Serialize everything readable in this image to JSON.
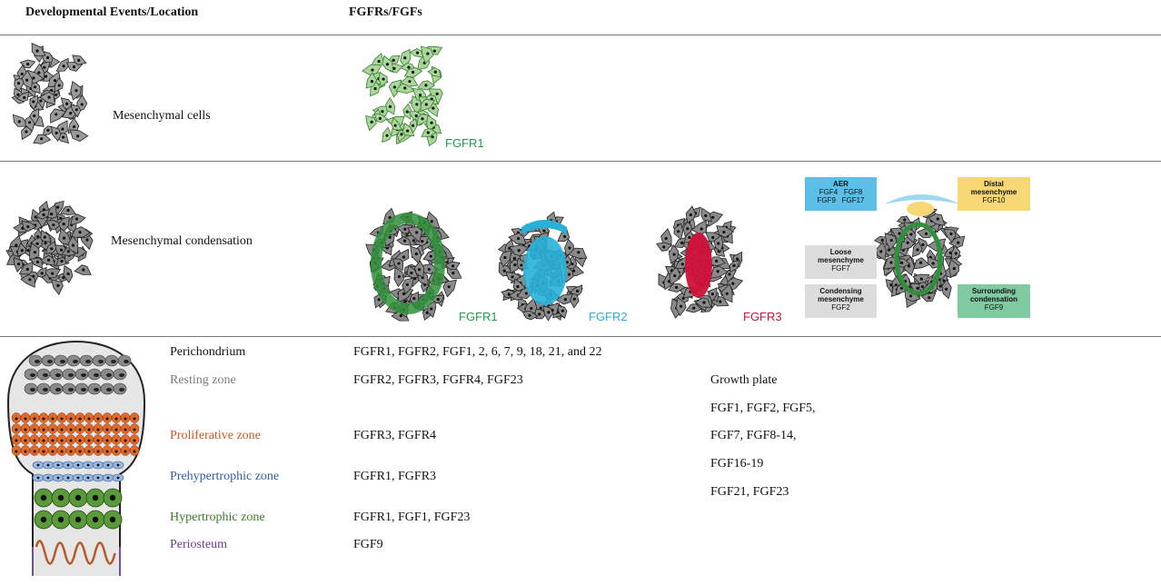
{
  "headers": {
    "events": "Developmental Events/Location",
    "fgfrs": "FGFRs/FGFs"
  },
  "row1": {
    "label": "Mesenchymal cells",
    "receptor": "FGFR1"
  },
  "row2": {
    "label": "Mesenchymal condensation",
    "receptors": [
      "FGFR1",
      "FGFR2",
      "FGFR3"
    ],
    "boxes": {
      "aer": {
        "title": "AER",
        "line1": "FGF4   FGF8",
        "line2": "FGF9   FGF17"
      },
      "distal": {
        "title1": "Distal",
        "title2": "mesenchyme",
        "value": "FGF10"
      },
      "loose": {
        "title1": "Loose",
        "title2": "mesenchyme",
        "value": "FGF7"
      },
      "condensing": {
        "title1": "Condensing",
        "title2": "mesenchyme",
        "value": "FGF2"
      },
      "surrounding": {
        "title1": "Surrounding",
        "title2": "condensation",
        "value": "FGF9"
      }
    }
  },
  "row3": {
    "zones": [
      {
        "name": "Perichondrium",
        "fgfs": "FGFR1, FGFR2, FGF1, 2, 6, 7, 9, 18, 21, and 22",
        "color": "#111111"
      },
      {
        "name": "Resting zone",
        "fgfs": "FGFR2, FGFR3, FGFR4, FGF23",
        "color": "#7a7a7a"
      },
      {
        "name": "Proliferative zone",
        "fgfs": "FGFR3, FGFR4",
        "color": "#d2541e"
      },
      {
        "name": "Prehypertrophic zone",
        "fgfs": "FGFR1, FGFR3",
        "color": "#2f5d9e"
      },
      {
        "name": "Hypertrophic zone",
        "fgfs": "FGFR1, FGF1, FGF23",
        "color": "#3c7a2a"
      },
      {
        "name": "Periosteum",
        "fgfs": "FGF9",
        "color": "#6b3b8f"
      }
    ],
    "growth_plate": {
      "title": "Growth plate",
      "lines": [
        "FGF1, FGF2, FGF5,",
        "FGF7, FGF8-14,",
        "FGF16-19",
        "FGF21, FGF23"
      ]
    }
  },
  "colors": {
    "fgfr1": "#1aa04a",
    "fgfr2": "#27b0d8",
    "fgfr3": "#d0103a",
    "aer": "#5bbfe8",
    "distal": "#f7d774",
    "loose": "#dcdcdc",
    "surrounding": "#7fcaa0"
  }
}
